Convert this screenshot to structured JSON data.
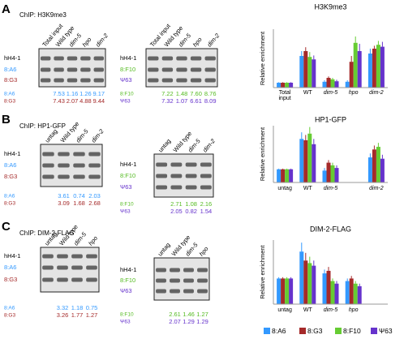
{
  "panels": [
    {
      "label": "A",
      "chip": "ChIP: H3K9me3",
      "gels": [
        {
          "lanes": [
            "Total input",
            "Wild type",
            "dim-5",
            "hpo",
            "dim-2"
          ],
          "rows": [
            "hH4-1",
            "8:A6",
            "8:G3"
          ],
          "row_colors": [
            "#000000",
            "#3399ff",
            "#a52a2a"
          ],
          "quant": [
            {
              "name": "8:A6",
              "color": "#3399ff",
              "values": [
                "7.53",
                "1.16",
                "1.26",
                "9.17"
              ]
            },
            {
              "name": "8:G3",
              "color": "#a52a2a",
              "values": [
                "7.43",
                "2.07",
                "4.88",
                "9.44"
              ]
            }
          ]
        },
        {
          "lanes": [
            "Total input",
            "Wild type",
            "dim-5",
            "hpo",
            "dim-2"
          ],
          "rows": [
            "hH4-1",
            "8:F10",
            "Ψ63"
          ],
          "row_colors": [
            "#000000",
            "#55bb22",
            "#6633cc"
          ],
          "quant": [
            {
              "name": "8:F10",
              "color": "#55bb22",
              "values": [
                "7.22",
                "1.48",
                "7.60",
                "8.76"
              ]
            },
            {
              "name": "Ψ63",
              "color": "#6633cc",
              "values": [
                "7.32",
                "1.07",
                "6.61",
                "8.09"
              ]
            }
          ]
        }
      ]
    },
    {
      "label": "B",
      "chip": "ChIP: HP1-GFP",
      "gels": [
        {
          "lanes": [
            "untag",
            "Wild type",
            "dim-5",
            "dim-2"
          ],
          "rows": [
            "hH4-1",
            "8:A6",
            "8:G3"
          ],
          "row_colors": [
            "#000000",
            "#3399ff",
            "#a52a2a"
          ],
          "quant": [
            {
              "name": "8:A6",
              "color": "#3399ff",
              "values": [
                "3.61",
                "0.74",
                "2.03"
              ]
            },
            {
              "name": "8:G3",
              "color": "#a52a2a",
              "values": [
                "3.09",
                "1.68",
                "2.68"
              ]
            }
          ]
        },
        {
          "lanes": [
            "untag",
            "Wild type",
            "dim-5",
            "dim-2"
          ],
          "rows": [
            "hH4-1",
            "8:F10",
            "Ψ63"
          ],
          "row_colors": [
            "#000000",
            "#55bb22",
            "#6633cc"
          ],
          "quant": [
            {
              "name": "8:F10",
              "color": "#55bb22",
              "values": [
                "2.71",
                "1.08",
                "2.16"
              ]
            },
            {
              "name": "Ψ63",
              "color": "#6633cc",
              "values": [
                "2.05",
                "0.82",
                "1.54"
              ]
            }
          ]
        }
      ]
    },
    {
      "label": "C",
      "chip": "ChIP: DIM-2-FLAG",
      "gels": [
        {
          "lanes": [
            "untag",
            "Wild type",
            "dim-5",
            "hpo"
          ],
          "rows": [
            "hH4-1",
            "8:A6",
            "8:G3"
          ],
          "row_colors": [
            "#000000",
            "#3399ff",
            "#a52a2a"
          ],
          "quant": [
            {
              "name": "8:A6",
              "color": "#3399ff",
              "values": [
                "3.32",
                "1.18",
                "0.75"
              ]
            },
            {
              "name": "8:G3",
              "color": "#a52a2a",
              "values": [
                "3.26",
                "1.77",
                "1.27"
              ]
            }
          ]
        },
        {
          "lanes": [
            "untag",
            "Wild type",
            "dim-5",
            "hpo"
          ],
          "rows": [
            "hH4-1",
            "8:F10",
            "Ψ63"
          ],
          "row_colors": [
            "#000000",
            "#55bb22",
            "#6633cc"
          ],
          "quant": [
            {
              "name": "8:F10",
              "color": "#55bb22",
              "values": [
                "2.61",
                "1.46",
                "1.27"
              ]
            },
            {
              "name": "Ψ63",
              "color": "#6633cc",
              "values": [
                "2.07",
                "1.29",
                "1.29"
              ]
            }
          ]
        }
      ]
    }
  ],
  "chart_data": [
    {
      "type": "bar",
      "title": "H3K9me3",
      "y_label": "Relative enrichment",
      "ylim": [
        0,
        12
      ],
      "categories": [
        "Total input",
        "WT",
        "dim-5",
        "hpo",
        "dim-2"
      ],
      "series": [
        {
          "name": "8:A6",
          "color": "#3399ff",
          "values": [
            1,
            6.5,
            1.2,
            1.2,
            7
          ],
          "errors": [
            0.1,
            1,
            0.3,
            0.3,
            1
          ]
        },
        {
          "name": "8:G3",
          "color": "#a52a2a",
          "values": [
            1,
            7.5,
            2,
            5.3,
            8
          ],
          "errors": [
            0.1,
            0.8,
            0.3,
            1.2,
            0.6
          ]
        },
        {
          "name": "8:F10",
          "color": "#66cc33",
          "values": [
            1,
            6.3,
            1.7,
            9.2,
            8.8
          ],
          "errors": [
            0.1,
            1,
            0.3,
            1.3,
            0.8
          ]
        },
        {
          "name": "Ψ63",
          "color": "#6633cc",
          "values": [
            1,
            5.8,
            1.3,
            7.5,
            8.4
          ],
          "errors": [
            0.1,
            0.8,
            0.3,
            1.5,
            1
          ]
        }
      ]
    },
    {
      "type": "bar",
      "title": "HP1-GFP",
      "y_label": "Relative enrichment",
      "ylim": [
        0,
        4.3
      ],
      "categories": [
        "untag",
        "WT",
        "dim-5",
        null,
        "dim-2"
      ],
      "series": [
        {
          "name": "8:A6",
          "color": "#3399ff",
          "values": [
            1,
            3.3,
            0.9,
            null,
            1.9
          ],
          "errors": [
            0.05,
            0.5,
            0.2,
            null,
            0.3
          ]
        },
        {
          "name": "8:G3",
          "color": "#a52a2a",
          "values": [
            1,
            3.2,
            1.5,
            null,
            2.5
          ],
          "errors": [
            0.05,
            0.4,
            0.2,
            null,
            0.3
          ]
        },
        {
          "name": "8:F10",
          "color": "#66cc33",
          "values": [
            1,
            3.7,
            1.3,
            null,
            2.7
          ],
          "errors": [
            0.05,
            0.5,
            0.2,
            null,
            0.3
          ]
        },
        {
          "name": "Ψ63",
          "color": "#6633cc",
          "values": [
            1,
            2.9,
            1.1,
            null,
            1.8
          ],
          "errors": [
            0.05,
            0.4,
            0.2,
            null,
            0.3
          ]
        }
      ]
    },
    {
      "type": "bar",
      "title": "DIM-2-FLAG",
      "y_label": "Relative enrichment",
      "ylim": [
        0,
        2.5
      ],
      "categories": [
        "untag",
        "WT",
        "dim-5",
        "hpo",
        null
      ],
      "series": [
        {
          "name": "8:A6",
          "color": "#3399ff",
          "values": [
            1,
            2.05,
            1.2,
            0.9,
            null
          ],
          "errors": [
            0.05,
            0.35,
            0.15,
            0.1,
            null
          ]
        },
        {
          "name": "8:G3",
          "color": "#a52a2a",
          "values": [
            1,
            1.7,
            1.3,
            1,
            null
          ],
          "errors": [
            0.05,
            0.3,
            0.15,
            0.1,
            null
          ]
        },
        {
          "name": "8:F10",
          "color": "#66cc33",
          "values": [
            1,
            1.6,
            0.9,
            0.8,
            null
          ],
          "errors": [
            0.05,
            0.25,
            0.1,
            0.1,
            null
          ]
        },
        {
          "name": "Ψ63",
          "color": "#6633cc",
          "values": [
            1,
            1.5,
            0.8,
            0.7,
            null
          ],
          "errors": [
            0.05,
            0.2,
            0.1,
            0.1,
            null
          ]
        }
      ]
    }
  ]
}
